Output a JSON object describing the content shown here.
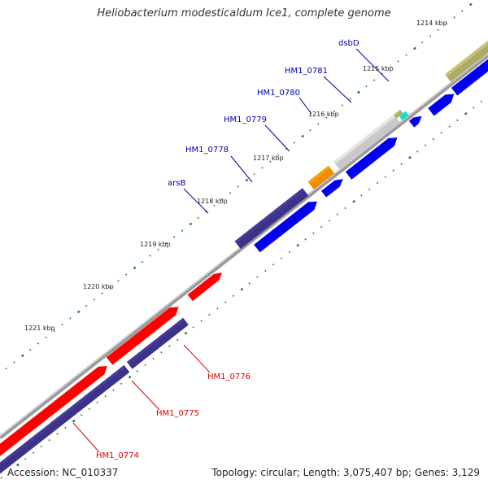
{
  "title": "Heliobacterium modesticaldum Ice1, complete genome",
  "accession": "Accession: NC_010337",
  "topology": "Topology: circular; Length: 3,075,407 bp; Genes: 3,129",
  "colors": {
    "blue": "#0000ee",
    "navy": "#3b3388",
    "red": "#ff0000",
    "orange": "#f08c00",
    "olive": "#b0aa66",
    "gray": "#c8c8c8",
    "cyan": "#00dddd",
    "label_blue": "#0000aa",
    "label_red": "#dd0000"
  },
  "kbp_ticks": [
    {
      "label": "1214 kbp"
    },
    {
      "label": "1215 kbp"
    },
    {
      "label": "1216 kbp"
    },
    {
      "label": "1217 kbp"
    },
    {
      "label": "1218 kbp"
    },
    {
      "label": "1219 kbp"
    },
    {
      "label": "1220 kbp"
    },
    {
      "label": "1221 kbp"
    }
  ],
  "gene_labels": [
    {
      "name": "dsbD",
      "strand": "forward"
    },
    {
      "name": "HM1_0781",
      "strand": "forward"
    },
    {
      "name": "HM1_0780",
      "strand": "forward"
    },
    {
      "name": "HM1_0779",
      "strand": "forward"
    },
    {
      "name": "HM1_0778",
      "strand": "forward"
    },
    {
      "name": "arsB",
      "strand": "forward"
    },
    {
      "name": "HM1_0776",
      "strand": "reverse"
    },
    {
      "name": "HM1_0775",
      "strand": "reverse"
    },
    {
      "name": "HM1_0774",
      "strand": "reverse"
    }
  ]
}
